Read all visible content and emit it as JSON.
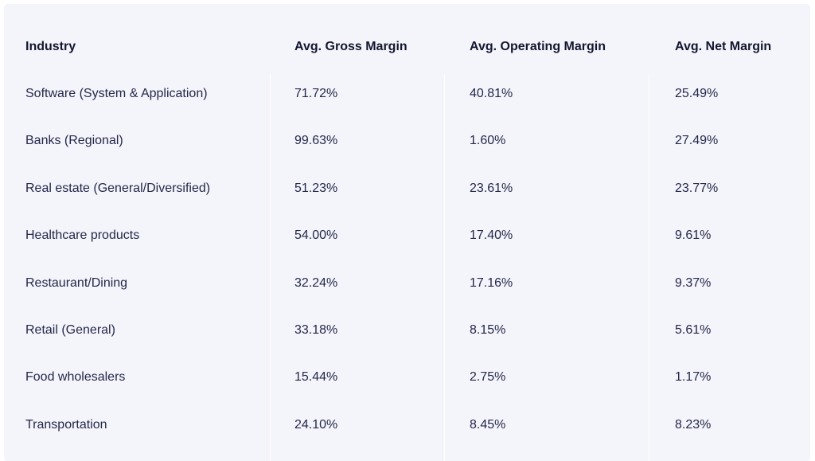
{
  "chart_data": {
    "type": "table",
    "columns": [
      "Industry",
      "Avg. Gross Margin",
      "Avg. Operating Margin",
      "Avg. Net Margin"
    ],
    "rows": [
      [
        "Software (System & Application)",
        "71.72%",
        "40.81%",
        "25.49%"
      ],
      [
        "Banks (Regional)",
        "99.63%",
        "1.60%",
        "27.49%"
      ],
      [
        "Real estate (General/Diversified)",
        "51.23%",
        "23.61%",
        "23.77%"
      ],
      [
        "Healthcare products",
        "54.00%",
        "17.40%",
        "9.61%"
      ],
      [
        "Restaurant/Dining",
        "32.24%",
        "17.16%",
        "9.37%"
      ],
      [
        "Retail (General)",
        "33.18%",
        "8.15%",
        "5.61%"
      ],
      [
        "Food wholesalers",
        "15.44%",
        "2.75%",
        "1.17%"
      ],
      [
        "Transportation",
        "24.10%",
        "8.45%",
        "8.23%"
      ]
    ]
  }
}
